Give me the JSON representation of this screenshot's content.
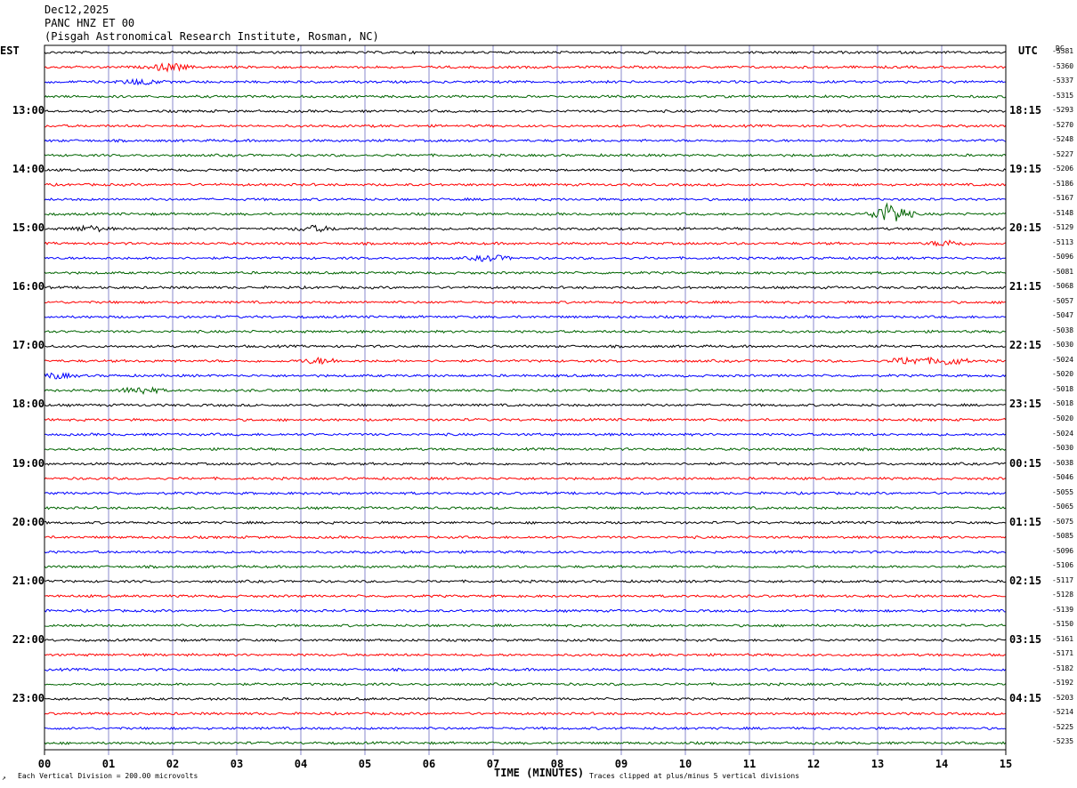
{
  "header": {
    "date": "Dec12,2025",
    "station": "PANC HNZ ET 00",
    "institution": "(Pisgah Astronomical Research Institute, Rosman, NC)"
  },
  "chart_data": {
    "type": "line",
    "title": "PANC HNZ ET 00",
    "left_axis_label": "EST",
    "right_axis_label": "UTC",
    "dc_header": "DC",
    "xlabel": "TIME (MINUTES)",
    "x_ticks": [
      "00",
      "01",
      "02",
      "03",
      "04",
      "05",
      "06",
      "07",
      "08",
      "09",
      "10",
      "11",
      "12",
      "13",
      "14",
      "15"
    ],
    "xlim": [
      0,
      15
    ],
    "left_time_labels": [
      "13:00",
      "14:00",
      "15:00",
      "16:00",
      "17:00",
      "18:00",
      "19:00",
      "20:00",
      "21:00",
      "22:00",
      "23:00"
    ],
    "right_time_labels": [
      "18:15",
      "19:15",
      "20:15",
      "21:15",
      "22:15",
      "23:15",
      "00:15",
      "01:15",
      "02:15",
      "03:15",
      "04:15"
    ],
    "dc_offsets": [
      "-5381",
      "-5360",
      "-5337",
      "-5315",
      "-5293",
      "-5270",
      "-5248",
      "-5227",
      "-5206",
      "-5186",
      "-5167",
      "-5148",
      "-5129",
      "-5113",
      "-5096",
      "-5081",
      "-5068",
      "-5057",
      "-5047",
      "-5038",
      "-5030",
      "-5024",
      "-5020",
      "-5018",
      "-5018",
      "-5020",
      "-5024",
      "-5030",
      "-5038",
      "-5046",
      "-5055",
      "-5065",
      "-5075",
      "-5085",
      "-5096",
      "-5106",
      "-5117",
      "-5128",
      "-5139",
      "-5150",
      "-5161",
      "-5171",
      "-5182",
      "-5192",
      "-5203",
      "-5214",
      "-5225",
      "-5235"
    ],
    "trace_colors": [
      "#000000",
      "#ff0000",
      "#0000ff",
      "#006400"
    ],
    "grid_color": "#8888cc",
    "events": [
      {
        "row": 1,
        "x": 1.95,
        "amp": 4
      },
      {
        "row": 2,
        "x": 1.5,
        "amp": 3
      },
      {
        "row": 11,
        "x": 13.2,
        "amp": 12
      },
      {
        "row": 12,
        "x": 0.7,
        "amp": 3
      },
      {
        "row": 12,
        "x": 4.2,
        "amp": 3
      },
      {
        "row": 13,
        "x": 14.1,
        "amp": 3
      },
      {
        "row": 14,
        "x": 6.95,
        "amp": 3
      },
      {
        "row": 21,
        "x": 4.3,
        "amp": 3
      },
      {
        "row": 21,
        "x": 13.5,
        "amp": 4
      },
      {
        "row": 21,
        "x": 14.1,
        "amp": 4
      },
      {
        "row": 22,
        "x": 0.15,
        "amp": 3
      },
      {
        "row": 23,
        "x": 1.5,
        "amp": 4
      }
    ],
    "grid": true
  },
  "footer": {
    "vertical_division": "Each Vertical Division =  200.00 microvolts",
    "clip_note": "Traces clipped at plus/minus 5 vertical divisions",
    "corner_mark": "↗"
  }
}
